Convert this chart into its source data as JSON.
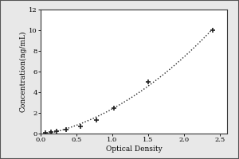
{
  "x_data": [
    0.07,
    0.14,
    0.22,
    0.35,
    0.55,
    0.78,
    1.02,
    1.5,
    2.4
  ],
  "y_data": [
    0.05,
    0.15,
    0.25,
    0.4,
    0.7,
    1.3,
    2.5,
    5.0,
    10.0
  ],
  "xlabel": "Optical Density",
  "ylabel": "Concentration(ng/mL)",
  "xlim": [
    0,
    2.6
  ],
  "ylim": [
    0,
    12
  ],
  "xticks": [
    0,
    0.5,
    1.0,
    1.5,
    2.0,
    2.5
  ],
  "yticks": [
    0,
    2,
    4,
    6,
    8,
    10,
    12
  ],
  "line_color": "#222222",
  "marker_color": "#222222",
  "outer_bg": "#e8e8e8",
  "plot_bg_color": "#ffffff",
  "border_color": "#333333",
  "axis_fontsize": 6.5,
  "tick_fontsize": 6,
  "figsize": [
    3.0,
    2.0
  ],
  "dpi": 100
}
